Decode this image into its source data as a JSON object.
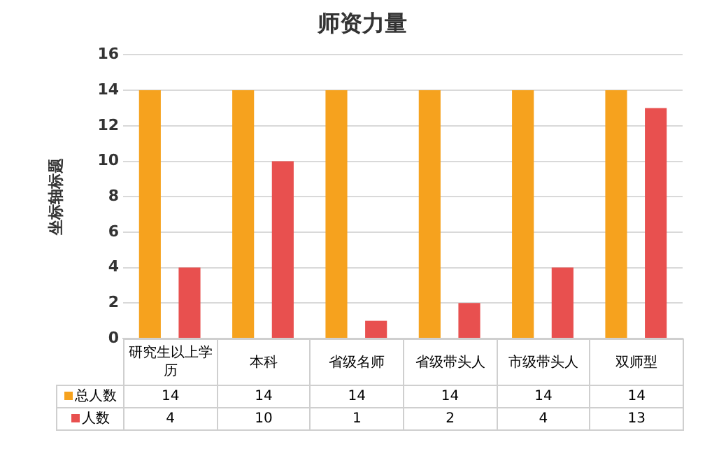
{
  "chart_data": {
    "type": "bar",
    "title": "师资力量",
    "ylabel": "坐标轴标题",
    "categories": [
      "研究生以上学历",
      "本科",
      "省级名师",
      "省级带头人",
      "市级带头人",
      "双师型"
    ],
    "series": [
      {
        "name": "总人数",
        "color": "#f6a21e",
        "values": [
          14,
          14,
          14,
          14,
          14,
          14
        ]
      },
      {
        "name": "人数",
        "color": "#e8504f",
        "values": [
          4,
          10,
          1,
          2,
          4,
          13
        ]
      }
    ],
    "ylim": [
      0,
      16
    ],
    "yticks": [
      0,
      2,
      4,
      6,
      8,
      10,
      12,
      14,
      16
    ],
    "grid": "y",
    "legend": "bottom",
    "data_labels": true
  }
}
